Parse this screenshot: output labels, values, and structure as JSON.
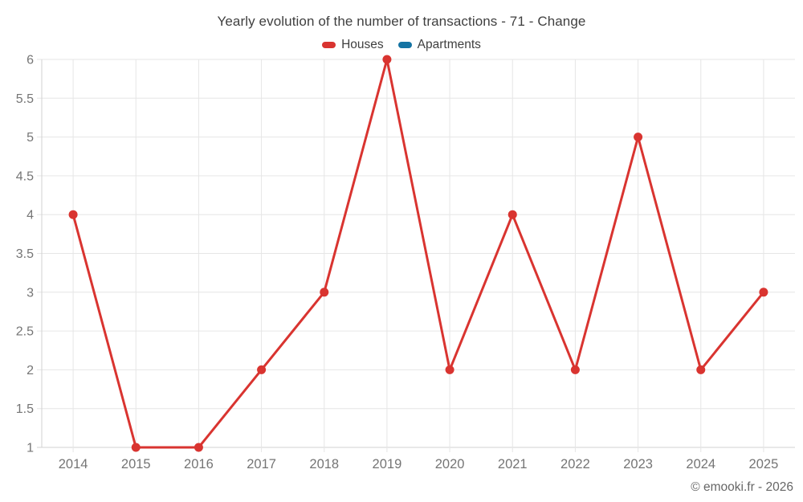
{
  "chart_data": {
    "type": "line",
    "title": "Yearly evolution of the number of transactions - 71 - Change",
    "categories": [
      "2014",
      "2015",
      "2016",
      "2017",
      "2018",
      "2019",
      "2020",
      "2021",
      "2022",
      "2023",
      "2024",
      "2025"
    ],
    "series": [
      {
        "name": "Houses",
        "color": "#d93430",
        "values": [
          4,
          1,
          1,
          2,
          3,
          6,
          2,
          4,
          2,
          5,
          2,
          3
        ]
      },
      {
        "name": "Apartments",
        "color": "#1473a3",
        "values": []
      }
    ],
    "xlabel": "",
    "ylabel": "",
    "ylim": [
      1,
      6
    ],
    "yticks": [
      1,
      1.5,
      2,
      2.5,
      3,
      3.5,
      4,
      4.5,
      5,
      5.5,
      6
    ],
    "grid": true,
    "legend_position": "top",
    "marker": "circle"
  },
  "footer": {
    "copyright": "© emooki.fr - 2026"
  }
}
